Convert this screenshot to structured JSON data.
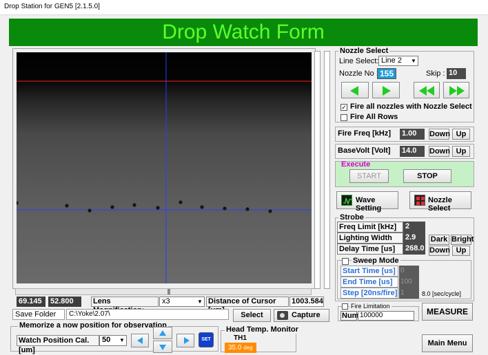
{
  "window": {
    "title": "Drop Station for GEN5 [2.1.5.0]"
  },
  "banner": {
    "title": "Drop Watch Form"
  },
  "nozzle_select": {
    "group_label": "Nozzle Select",
    "line_select_label": "Line Select:",
    "line_select_value": "Line 2",
    "nozzle_no_label": "Nozzle No :",
    "nozzle_no_value": "155",
    "skip_label": "Skip :",
    "skip_value": "10",
    "fire_all_nozzles_label": "Fire all nozzles with Nozzle Select",
    "fire_all_nozzles_checked": true,
    "fire_all_rows_label": "Fire All Rows",
    "fire_all_rows_checked": false
  },
  "fire_freq": {
    "label": "Fire Freq [kHz]",
    "value": "1.00",
    "down": "Down",
    "up": "Up"
  },
  "base_volt": {
    "label": "BaseVolt [Volt]",
    "value": "14.0",
    "down": "Down",
    "up": "Up"
  },
  "execute": {
    "label": "Execute",
    "start": "START",
    "stop": "STOP"
  },
  "buttons": {
    "wave_setting": "Wave Setting",
    "nozzle_select": "Nozzle Select"
  },
  "strobe": {
    "group_label": "Strobe",
    "freq_limit_label": "Freq Limit [kHz]",
    "freq_limit_value": "2",
    "lighting_width_label": "Lighting Width [us]",
    "lighting_width_value": "2.9",
    "delay_time_label": "Delay Time [us]",
    "delay_time_value": "268.0",
    "dark": "Dark",
    "bright": "Bright",
    "down": "Down",
    "up": "Up"
  },
  "sweep": {
    "label": "Sweep Mode",
    "checked": false,
    "start_label": "Start Time  [us]",
    "start_value": "0",
    "end_label": "End Time  [us]",
    "end_value": "100",
    "step_label": "Step [20ns/fire]",
    "step_value": "1",
    "rate": "8.0 [sec/cycle]"
  },
  "fire_limitation": {
    "label": "Fire Limitation",
    "checked": false,
    "num_label": "Num",
    "num_value": "100000",
    "measure": "MEASURE"
  },
  "status": {
    "coord_x": "69.145",
    "coord_y": "52.800",
    "lens_label": "Lens Magnification:",
    "lens_value": "x3",
    "distance_label": "Distance of Cursor [um]",
    "distance_value": "1003.584"
  },
  "save_folder": {
    "label": "Save Folder",
    "path": "C:\\Yoke\\2.07\\",
    "select": "Select",
    "capture": "Capture"
  },
  "memorize": {
    "group_label": "Memorize a now position for observation",
    "watch_label": "Watch Position Cal. [um]",
    "watch_value": "50",
    "set": "SET"
  },
  "head_temp": {
    "group_label": "Head Temp. Monitor",
    "channel": "TH1",
    "value": "35.0",
    "unit": "deg"
  },
  "main_menu": "Main Menu",
  "colors": {
    "banner_bg": "#0a8a0a",
    "banner_text": "#5cff2e",
    "arrow_green": "#22cc22",
    "execute_bg": "#c6f0c6",
    "execute_label": "#d400d4",
    "temp_bg": "#ff8c00",
    "nozzle_value_bg": "#1d9bd8"
  }
}
